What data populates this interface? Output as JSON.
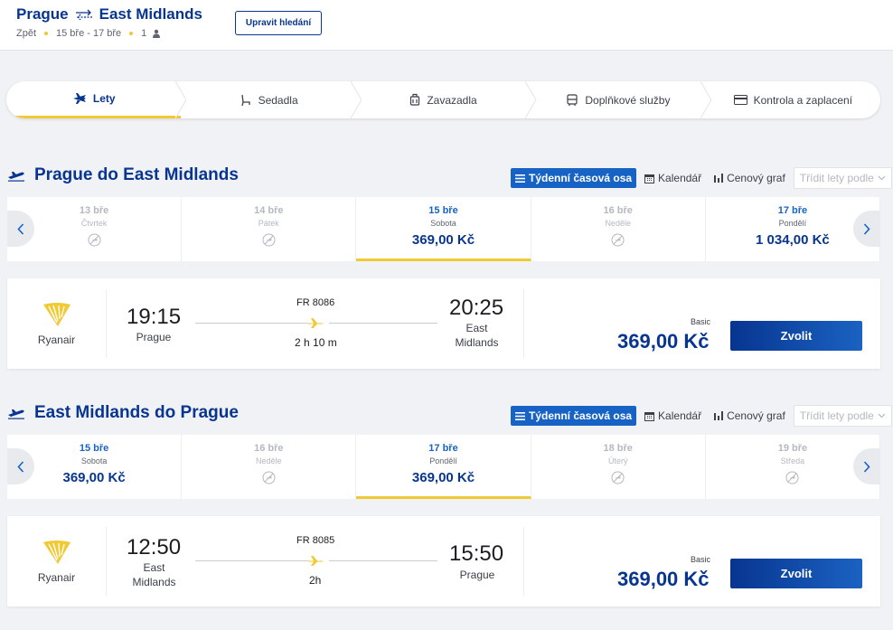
{
  "header": {
    "origin": "Prague",
    "destination": "East Midlands",
    "trip_type": "Zpět",
    "dates": "15 bře - 17 bře",
    "passengers": "1",
    "modify_button": "Upravit hledání"
  },
  "steps": [
    {
      "label": "Lety",
      "icon": "plane-icon",
      "active": true
    },
    {
      "label": "Sedadla",
      "icon": "seat-icon",
      "active": false
    },
    {
      "label": "Zavazadla",
      "icon": "luggage-icon",
      "active": false
    },
    {
      "label": "Doplňkové služby",
      "icon": "bus-icon",
      "active": false
    },
    {
      "label": "Kontrola a zaplacení",
      "icon": "card-icon",
      "active": false
    }
  ],
  "view_controls": {
    "weekly": "Týdenní časová osa",
    "calendar": "Kalendář",
    "price_graph": "Cenový graf",
    "sort": "Třídit lety podle"
  },
  "outbound": {
    "title": "Prague do East Midlands",
    "dates": [
      {
        "day": "13 bře",
        "weekday": "Čtvrtek",
        "price": "",
        "available": false,
        "selected": false
      },
      {
        "day": "14 bře",
        "weekday": "Pátek",
        "price": "",
        "available": false,
        "selected": false
      },
      {
        "day": "15 bře",
        "weekday": "Sobota",
        "price": "369,00 Kč",
        "available": true,
        "selected": true
      },
      {
        "day": "16 bře",
        "weekday": "Neděle",
        "price": "",
        "available": false,
        "selected": false
      },
      {
        "day": "17 bře",
        "weekday": "Pondělí",
        "price": "1 034,00 Kč",
        "available": true,
        "selected": false
      }
    ],
    "flight": {
      "airline": "Ryanair",
      "dep_time": "19:15",
      "dep_city": "Prague",
      "flight_number": "FR 8086",
      "duration": "2 h 10 m",
      "arr_time": "20:25",
      "arr_city_line1": "East",
      "arr_city_line2": "Midlands",
      "fare_type": "Basic",
      "price": "369,00 Kč",
      "select": "Zvolit"
    }
  },
  "inbound": {
    "title": "East Midlands do Prague",
    "dates": [
      {
        "day": "15 bře",
        "weekday": "Sobota",
        "price": "369,00 Kč",
        "available": true,
        "selected": false
      },
      {
        "day": "16 bře",
        "weekday": "Neděle",
        "price": "",
        "available": false,
        "selected": false
      },
      {
        "day": "17 bře",
        "weekday": "Pondělí",
        "price": "369,00 Kč",
        "available": true,
        "selected": true
      },
      {
        "day": "18 bře",
        "weekday": "Úterý",
        "price": "",
        "available": false,
        "selected": false
      },
      {
        "day": "19 bře",
        "weekday": "Středa",
        "price": "",
        "available": false,
        "selected": false
      }
    ],
    "flight": {
      "airline": "Ryanair",
      "dep_time": "12:50",
      "dep_city_line1": "East",
      "dep_city_line2": "Midlands",
      "flight_number": "FR 8085",
      "duration": "2h",
      "arr_time": "15:50",
      "arr_city": "Prague",
      "fare_type": "Basic",
      "price": "369,00 Kč",
      "select": "Zvolit"
    }
  },
  "colors": {
    "brand": "#073590",
    "accent": "#f1c933",
    "link": "#1763c5"
  }
}
